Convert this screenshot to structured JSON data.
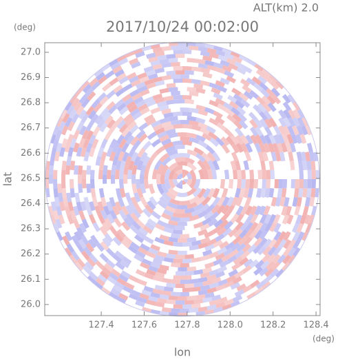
{
  "chart_data": {
    "type": "heatmap",
    "title": "2017/10/24 00:02:00",
    "subtitle": "ALT(km) 2.0",
    "x_label": "lon",
    "y_label": "lat",
    "x_unit": "(deg)",
    "y_unit": "(deg)",
    "xlim": [
      127.137,
      128.419
    ],
    "ylim": [
      25.956,
      27.038
    ],
    "xticks": [
      127.4,
      127.6,
      127.8,
      {
        "value": 128,
        "label": "128.0"
      },
      128.2,
      128.4
    ],
    "yticks": [
      {
        "value": 26,
        "label": "26.0"
      },
      26.1,
      26.2,
      26.3,
      26.4,
      26.5,
      26.6,
      26.7,
      26.8,
      26.9,
      {
        "value": 27,
        "label": "27.0"
      }
    ],
    "colors": [
      "#f2b0b0",
      "#b8b8f2"
    ]
  }
}
